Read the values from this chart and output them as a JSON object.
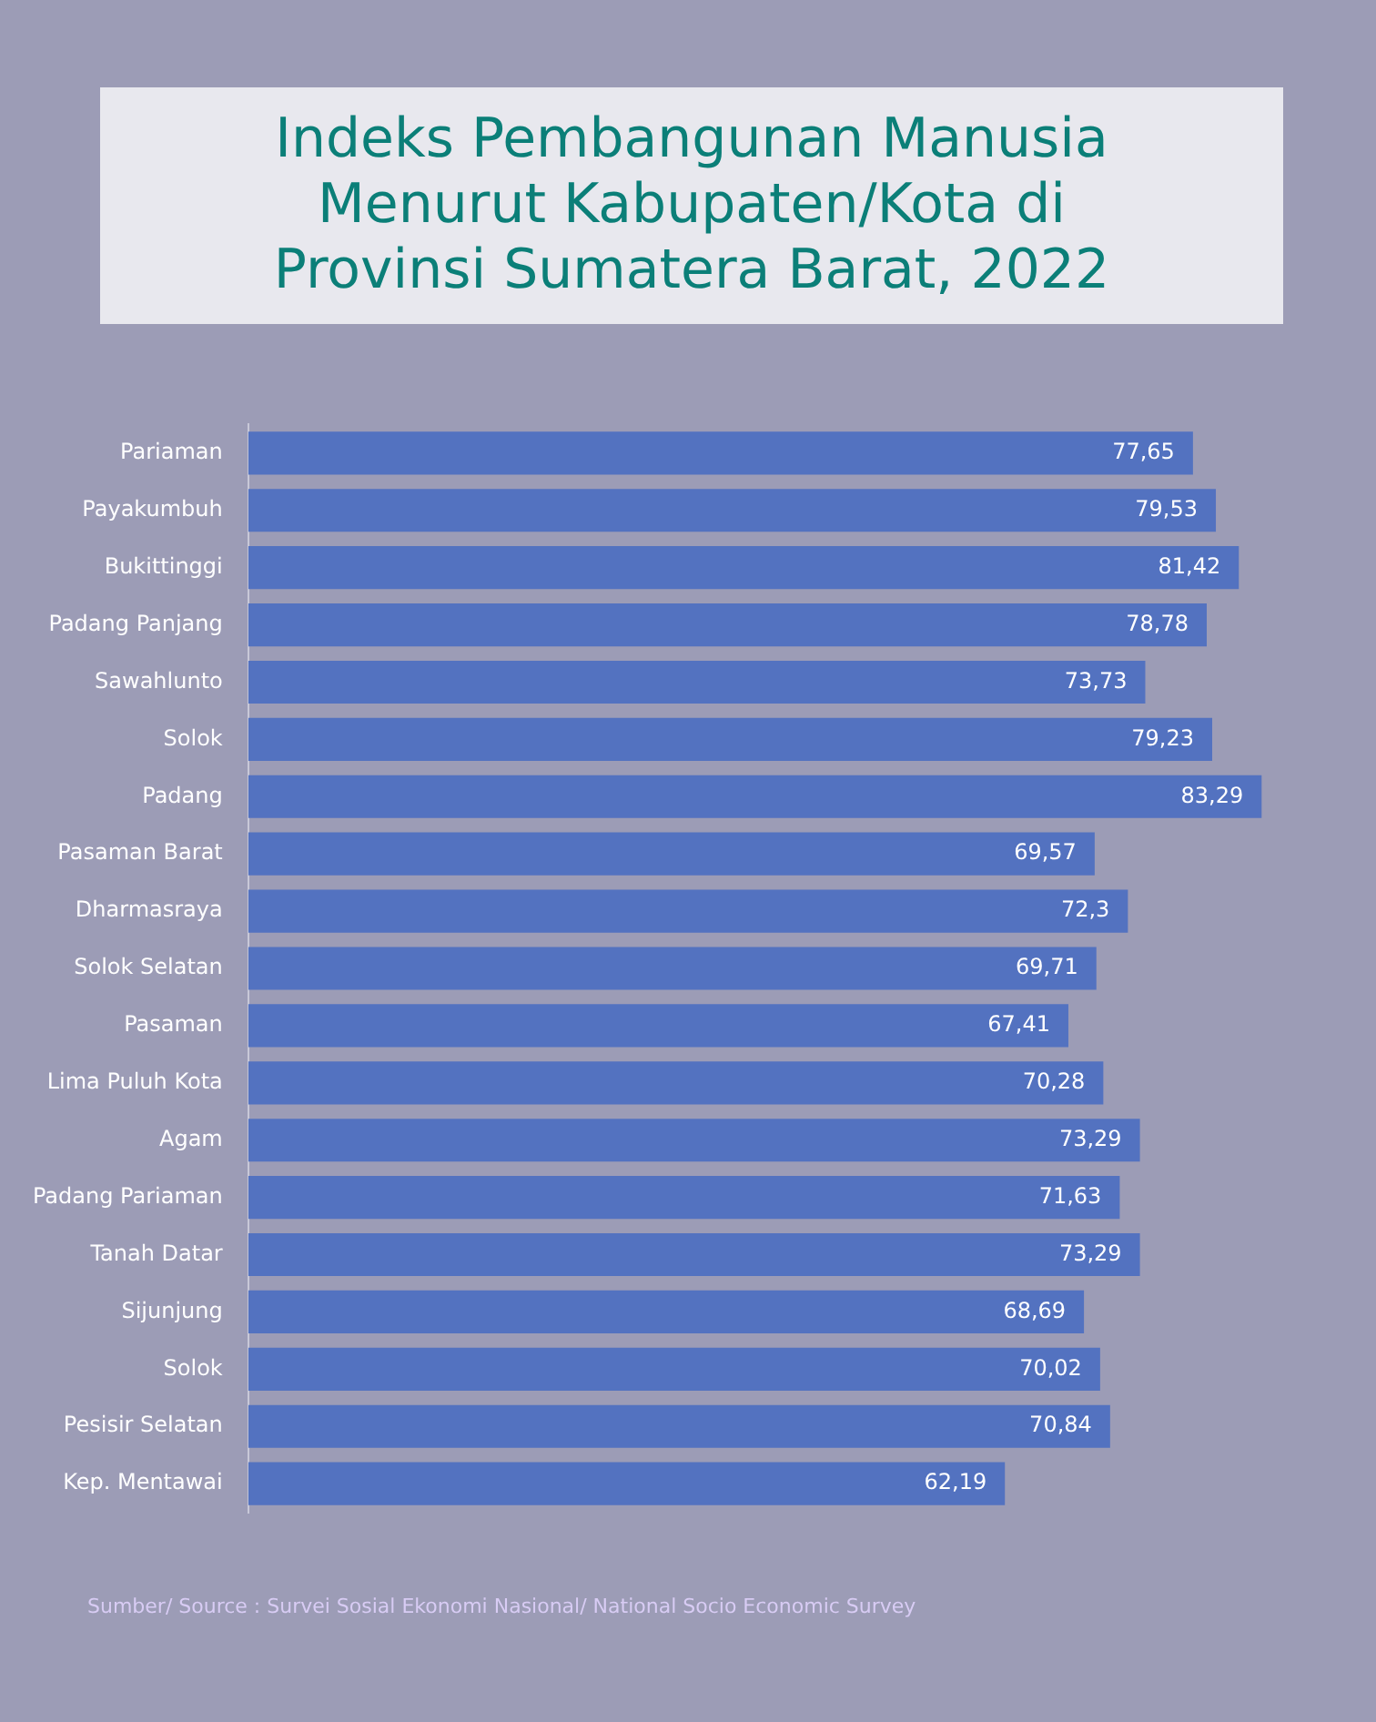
{
  "chart_data": {
    "type": "bar",
    "orientation": "horizontal",
    "title": "Indeks Pembangunan Manusia Menurut Kabupaten/Kota di Provinsi Sumatera Barat, 2022",
    "categories": [
      "Pariaman",
      "Payakumbuh",
      "Bukittinggi",
      "Padang Panjang",
      "Sawahlunto",
      "Solok",
      "Padang",
      "Pasaman Barat",
      "Dharmasraya",
      "Solok Selatan",
      "Pasaman",
      "Lima Puluh Kota",
      "Agam",
      "Padang Pariaman",
      "Tanah Datar",
      "Sijunjung",
      "Solok",
      "Pesisir Selatan",
      "Kep. Mentawai"
    ],
    "values": [
      77.65,
      79.53,
      81.42,
      78.78,
      73.73,
      79.23,
      83.29,
      69.57,
      72.3,
      69.71,
      67.41,
      70.28,
      73.29,
      71.63,
      73.29,
      68.69,
      70.02,
      70.84,
      62.19
    ],
    "value_labels": [
      "77,65",
      "79,53",
      "81,42",
      "78,78",
      "73,73",
      "79,23",
      "83,29",
      "69,57",
      "72,3",
      "69,71",
      "67,41",
      "70,28",
      "73,29",
      "71,63",
      "73,29",
      "68,69",
      "70,02",
      "70,84",
      "62,19"
    ],
    "color": "#5372c0",
    "tick_labels": "y",
    "grid": false,
    "legend": false,
    "annotations": [
      "Sumber/ Source : Survei Sosial Ekonomi Nasional/ National Socio Economic Survey"
    ]
  }
}
